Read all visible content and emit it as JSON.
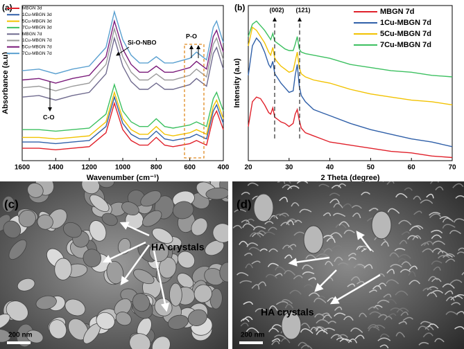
{
  "chart_data": [
    {
      "type": "line",
      "panel_label": "(a)",
      "xlabel": "Wavenumber (cm⁻¹)",
      "ylabel": "Absorbance (a.u)",
      "annotations": [
        "Si-O-NBO",
        "P-O",
        "C-O"
      ],
      "x": [
        1600,
        1500,
        1400,
        1300,
        1200,
        1100,
        1050,
        1000,
        950,
        900,
        850,
        800,
        750,
        700,
        600,
        560,
        500,
        460,
        440,
        400
      ],
      "xlim": [
        1600,
        400
      ],
      "xticks": [
        1600,
        1400,
        1200,
        1000,
        800,
        600,
        400
      ],
      "ylim": [
        0,
        100
      ],
      "series": [
        {
          "name": "MBGN 3d",
          "color": "#e0202a",
          "values": [
            8,
            8,
            7,
            8,
            9,
            18,
            37,
            20,
            13,
            10,
            10,
            15,
            10,
            9,
            11,
            13,
            10,
            28,
            32,
            20
          ]
        },
        {
          "name": "1Cu-MBGN 3d",
          "color": "#2f5fa8",
          "values": [
            12,
            12,
            11,
            12,
            13,
            22,
            41,
            24,
            17,
            14,
            14,
            19,
            14,
            13,
            15,
            17,
            14,
            32,
            36,
            24
          ]
        },
        {
          "name": "5Cu-MBGN 3d",
          "color": "#f2c200",
          "values": [
            15,
            15,
            14,
            15,
            16,
            25,
            44,
            27,
            20,
            17,
            17,
            22,
            17,
            16,
            18,
            20,
            17,
            35,
            39,
            27
          ]
        },
        {
          "name": "7Cu-MBGN 3d",
          "color": "#3cc060",
          "values": [
            20,
            20,
            19,
            20,
            21,
            30,
            49,
            32,
            25,
            22,
            22,
            27,
            22,
            21,
            23,
            25,
            22,
            40,
            44,
            32
          ]
        },
        {
          "name": "MBGN 7d",
          "color": "#6f6a8e",
          "values": [
            41,
            42,
            39,
            42,
            44,
            56,
            79,
            61,
            51,
            46,
            46,
            50,
            46,
            46,
            49,
            53,
            48,
            69,
            73,
            59
          ]
        },
        {
          "name": "1Cu-MBGN 7d",
          "color": "#9a9a9a",
          "values": [
            47,
            48,
            45,
            48,
            50,
            62,
            85,
            67,
            57,
            52,
            52,
            56,
            52,
            52,
            55,
            59,
            54,
            75,
            79,
            65
          ]
        },
        {
          "name": "5Cu-MBGN 7d",
          "color": "#7a1a7a",
          "values": [
            52,
            53,
            50,
            53,
            55,
            67,
            90,
            72,
            62,
            57,
            57,
            61,
            57,
            57,
            60,
            64,
            59,
            80,
            84,
            70
          ]
        },
        {
          "name": "7Cu-MBGN 7d",
          "color": "#5aa0d0",
          "values": [
            58,
            59,
            56,
            59,
            61,
            73,
            96,
            78,
            68,
            63,
            63,
            67,
            63,
            63,
            66,
            70,
            65,
            86,
            90,
            76
          ]
        }
      ]
    },
    {
      "type": "line",
      "panel_label": "(b)",
      "xlabel": "2 Theta (degree)",
      "ylabel": "Intensity (a.u)",
      "annotations": [
        "(002)",
        "(121)"
      ],
      "x": [
        20,
        21,
        22,
        23,
        24,
        25,
        25.5,
        26,
        26.5,
        27,
        28,
        29,
        30,
        31,
        31.5,
        32,
        32.5,
        33,
        34,
        36,
        38,
        40,
        45,
        50,
        55,
        60,
        65,
        70
      ],
      "xlim": [
        20,
        70
      ],
      "xticks": [
        20,
        30,
        40,
        50,
        60,
        70
      ],
      "ylim": [
        0,
        100
      ],
      "series": [
        {
          "name": "MBGN 7d",
          "color": "#e0202a",
          "values": [
            22,
            38,
            41,
            40,
            36,
            31,
            30,
            34,
            28,
            27,
            25,
            24,
            22,
            24,
            30,
            33,
            26,
            21,
            18,
            16,
            14,
            12,
            10,
            8,
            6,
            5,
            3,
            2
          ]
        },
        {
          "name": "1Cu-MBGN 7d",
          "color": "#2f5fa8",
          "values": [
            55,
            74,
            79,
            76,
            70,
            62,
            60,
            64,
            56,
            54,
            50,
            47,
            44,
            45,
            55,
            62,
            48,
            42,
            38,
            33,
            31,
            29,
            24,
            20,
            17,
            14,
            12,
            9
          ]
        },
        {
          "name": "5Cu-MBGN 7d",
          "color": "#f2c200",
          "values": [
            74,
            86,
            84,
            80,
            76,
            70,
            68,
            73,
            66,
            64,
            61,
            59,
            57,
            58,
            64,
            70,
            60,
            56,
            54,
            52,
            51,
            50,
            46,
            43,
            41,
            39,
            38,
            36
          ]
        },
        {
          "name": "7Cu-MBGN 7d",
          "color": "#3cc060",
          "values": [
            80,
            88,
            90,
            87,
            84,
            80,
            78,
            82,
            77,
            76,
            74,
            72,
            71,
            71,
            75,
            80,
            72,
            70,
            69,
            68,
            67,
            66,
            62,
            60,
            58,
            57,
            55,
            54
          ]
        }
      ]
    }
  ],
  "images": [
    {
      "panel_label": "(c)",
      "annotation": "HA crystals",
      "scale_bar": "200 nm"
    },
    {
      "panel_label": "(d)",
      "annotation": "HA crystals",
      "scale_bar": "200 nm"
    }
  ]
}
